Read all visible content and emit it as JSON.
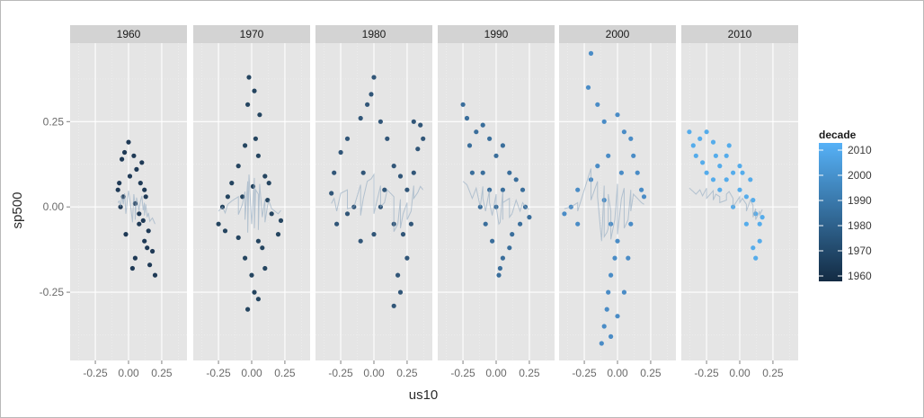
{
  "chart_data": {
    "type": "scatter",
    "facet_by": "decade",
    "facets": [
      "1960",
      "1970",
      "1980",
      "1990",
      "2000",
      "2010"
    ],
    "xlabel": "us10",
    "ylabel": "sp500",
    "xlim": [
      -0.44,
      0.44
    ],
    "ylim": [
      -0.45,
      0.48
    ],
    "x_ticks": [
      -0.25,
      0,
      0.25
    ],
    "x_tick_labels": [
      "-0.25",
      "0.00",
      "0.25"
    ],
    "y_ticks": [
      -0.25,
      0,
      0.25
    ],
    "y_tick_labels": [
      "-0.25",
      "0.00",
      "0.25"
    ],
    "grid": true,
    "smoother": true,
    "legend": {
      "title": "decade",
      "position": "right",
      "type": "colorbar",
      "range": [
        1960,
        2010
      ],
      "breaks": [
        2010,
        2000,
        1990,
        1980,
        1970,
        1960
      ],
      "labels": [
        "2010",
        "2000",
        "1990",
        "1980",
        "1970",
        "1960"
      ],
      "color_low": "#132B43",
      "color_high": "#56B1F7"
    },
    "panels": [
      {
        "facet": "1960",
        "color": "#1f3a56",
        "points": [
          [
            -0.07,
            0.07
          ],
          [
            -0.05,
            0.14
          ],
          [
            -0.03,
            0.16
          ],
          [
            0,
            0.19
          ],
          [
            0.04,
            0.15
          ],
          [
            0.06,
            0.11
          ],
          [
            0.1,
            0.13
          ],
          [
            0.12,
            0.05
          ],
          [
            0.13,
            0.03
          ],
          [
            -0.06,
            0
          ],
          [
            0.05,
            0.01
          ],
          [
            0.08,
            -0.05
          ],
          [
            0.15,
            -0.07
          ],
          [
            0.14,
            -0.12
          ],
          [
            0.18,
            -0.13
          ],
          [
            0.2,
            -0.2
          ],
          [
            0.16,
            -0.17
          ],
          [
            0.12,
            -0.1
          ],
          [
            0.03,
            -0.18
          ],
          [
            0.05,
            -0.15
          ],
          [
            -0.02,
            -0.08
          ],
          [
            0.08,
            -0.02
          ],
          [
            -0.08,
            0.05
          ],
          [
            -0.04,
            0.03
          ],
          [
            0.01,
            0.09
          ],
          [
            0.09,
            0.07
          ],
          [
            0.11,
            -0.04
          ]
        ]
      },
      {
        "facet": "1970",
        "color": "#254560",
        "points": [
          [
            -0.02,
            0.38
          ],
          [
            -0.03,
            0.3
          ],
          [
            0.02,
            0.34
          ],
          [
            0.06,
            0.27
          ],
          [
            0.03,
            0.2
          ],
          [
            -0.05,
            0.18
          ],
          [
            -0.1,
            0.12
          ],
          [
            -0.15,
            0.07
          ],
          [
            -0.18,
            0.03
          ],
          [
            -0.22,
            0
          ],
          [
            -0.25,
            -0.05
          ],
          [
            -0.2,
            -0.07
          ],
          [
            0.05,
            0.15
          ],
          [
            0.1,
            0.09
          ],
          [
            0.12,
            0.02
          ],
          [
            0.15,
            -0.02
          ],
          [
            0.2,
            -0.08
          ],
          [
            0.22,
            -0.04
          ],
          [
            0.05,
            -0.1
          ],
          [
            0,
            -0.2
          ],
          [
            0.02,
            -0.25
          ],
          [
            -0.03,
            -0.3
          ],
          [
            0.05,
            -0.27
          ],
          [
            0.1,
            -0.18
          ],
          [
            0.08,
            -0.12
          ],
          [
            -0.05,
            -0.15
          ],
          [
            -0.1,
            -0.09
          ],
          [
            0.13,
            0.07
          ],
          [
            0.01,
            0.06
          ],
          [
            -0.07,
            0.03
          ]
        ]
      },
      {
        "facet": "1980",
        "color": "#315678",
        "points": [
          [
            -0.25,
            0.16
          ],
          [
            -0.3,
            0.1
          ],
          [
            -0.32,
            0.04
          ],
          [
            -0.28,
            -0.05
          ],
          [
            -0.2,
            0.2
          ],
          [
            -0.1,
            0.26
          ],
          [
            -0.05,
            0.3
          ],
          [
            0,
            0.38
          ],
          [
            -0.02,
            0.33
          ],
          [
            0.05,
            0.25
          ],
          [
            0.1,
            0.2
          ],
          [
            0.15,
            0.12
          ],
          [
            0.2,
            0.09
          ],
          [
            0.3,
            0.25
          ],
          [
            0.35,
            0.24
          ],
          [
            0.33,
            0.17
          ],
          [
            0.3,
            0.1
          ],
          [
            0.37,
            0.2
          ],
          [
            0.25,
            0.05
          ],
          [
            0.28,
            -0.05
          ],
          [
            0.22,
            -0.08
          ],
          [
            0.15,
            -0.05
          ],
          [
            0.25,
            -0.15
          ],
          [
            0.2,
            -0.25
          ],
          [
            0.15,
            -0.29
          ],
          [
            0.18,
            -0.2
          ],
          [
            -0.1,
            -0.1
          ],
          [
            -0.15,
            0
          ],
          [
            0,
            -0.08
          ],
          [
            0.05,
            0
          ],
          [
            -0.08,
            0.1
          ],
          [
            0.08,
            0.05
          ],
          [
            -0.2,
            -0.02
          ]
        ]
      },
      {
        "facet": "1990",
        "color": "#3a6e9b",
        "points": [
          [
            -0.25,
            0.3
          ],
          [
            -0.22,
            0.26
          ],
          [
            -0.2,
            0.18
          ],
          [
            -0.15,
            0.22
          ],
          [
            -0.1,
            0.24
          ],
          [
            -0.05,
            0.2
          ],
          [
            0,
            0.15
          ],
          [
            0.05,
            0.18
          ],
          [
            0.1,
            0.1
          ],
          [
            0.15,
            0.08
          ],
          [
            0.2,
            0.05
          ],
          [
            0.22,
            0
          ],
          [
            0.25,
            -0.03
          ],
          [
            0.18,
            -0.05
          ],
          [
            0.12,
            -0.08
          ],
          [
            0.1,
            -0.12
          ],
          [
            0.05,
            -0.15
          ],
          [
            0.03,
            -0.18
          ],
          [
            0.02,
            -0.2
          ],
          [
            -0.03,
            -0.1
          ],
          [
            -0.08,
            -0.05
          ],
          [
            -0.12,
            0
          ],
          [
            -0.05,
            0.05
          ],
          [
            0,
            0
          ],
          [
            0.05,
            0.05
          ],
          [
            -0.1,
            0.1
          ],
          [
            -0.18,
            0.1
          ]
        ]
      },
      {
        "facet": "2000",
        "color": "#4a8cc6",
        "points": [
          [
            -0.2,
            0.45
          ],
          [
            -0.22,
            0.35
          ],
          [
            -0.15,
            0.3
          ],
          [
            -0.1,
            0.25
          ],
          [
            0,
            0.27
          ],
          [
            0.05,
            0.22
          ],
          [
            0.1,
            0.2
          ],
          [
            0.12,
            0.15
          ],
          [
            0.15,
            0.1
          ],
          [
            0.18,
            0.05
          ],
          [
            0.2,
            0.03
          ],
          [
            -0.3,
            0.05
          ],
          [
            -0.35,
            0
          ],
          [
            -0.4,
            -0.02
          ],
          [
            -0.3,
            -0.05
          ],
          [
            -0.2,
            0.08
          ],
          [
            -0.15,
            0.12
          ],
          [
            -0.1,
            0.02
          ],
          [
            -0.05,
            -0.05
          ],
          [
            0,
            -0.1
          ],
          [
            -0.02,
            -0.15
          ],
          [
            -0.05,
            -0.2
          ],
          [
            -0.07,
            -0.25
          ],
          [
            -0.08,
            -0.3
          ],
          [
            -0.1,
            -0.35
          ],
          [
            -0.05,
            -0.38
          ],
          [
            0,
            -0.32
          ],
          [
            0.05,
            -0.25
          ],
          [
            0.08,
            -0.15
          ],
          [
            0.1,
            -0.05
          ],
          [
            -0.12,
            -0.4
          ],
          [
            0.03,
            0.1
          ],
          [
            -0.07,
            0.15
          ]
        ]
      },
      {
        "facet": "2010",
        "color": "#55aceb",
        "points": [
          [
            -0.38,
            0.22
          ],
          [
            -0.35,
            0.18
          ],
          [
            -0.33,
            0.15
          ],
          [
            -0.3,
            0.2
          ],
          [
            -0.25,
            0.22
          ],
          [
            -0.2,
            0.19
          ],
          [
            -0.18,
            0.15
          ],
          [
            -0.15,
            0.12
          ],
          [
            -0.1,
            0.08
          ],
          [
            -0.1,
            0.15
          ],
          [
            -0.05,
            0.1
          ],
          [
            0,
            0.12
          ],
          [
            0,
            0.05
          ],
          [
            0.05,
            0.03
          ],
          [
            0.08,
            0.08
          ],
          [
            0.1,
            0.02
          ],
          [
            0.12,
            -0.02
          ],
          [
            0.15,
            -0.05
          ],
          [
            0.17,
            -0.03
          ],
          [
            0.15,
            -0.1
          ],
          [
            0.12,
            -0.15
          ],
          [
            0.1,
            -0.12
          ],
          [
            0.05,
            -0.05
          ],
          [
            -0.05,
            0
          ],
          [
            -0.15,
            0.05
          ],
          [
            -0.25,
            0.1
          ],
          [
            -0.28,
            0.13
          ],
          [
            -0.2,
            0.08
          ],
          [
            -0.08,
            0.18
          ],
          [
            0.02,
            0.1
          ]
        ]
      }
    ]
  }
}
